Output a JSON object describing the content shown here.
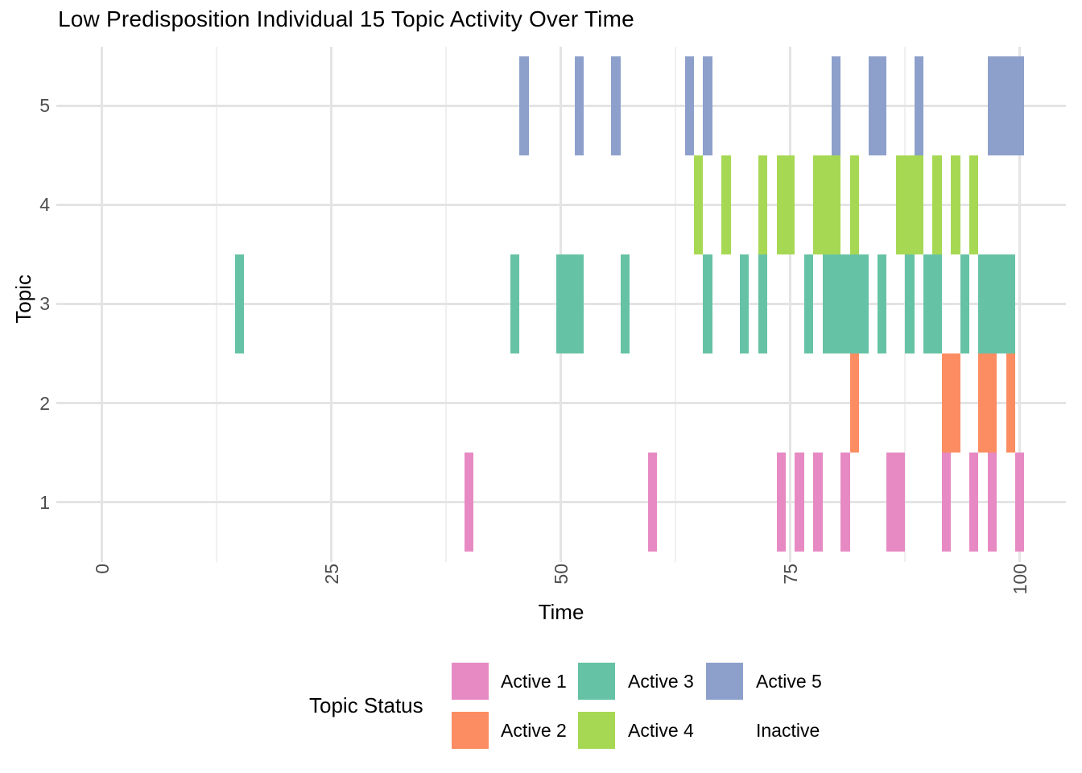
{
  "title": "Low Predisposition Individual 15 Topic Activity Over Time",
  "chart_data": {
    "type": "heatmap",
    "title": "Low Predisposition Individual 15 Topic Activity Over Time",
    "xlabel": "Time",
    "ylabel": "Topic",
    "x_ticks": [
      "0",
      "25",
      "50",
      "75",
      "100"
    ],
    "x_tick_values": [
      0,
      25,
      50,
      75,
      100
    ],
    "x_minor_tick_values": [
      12.5,
      37.5,
      62.5,
      87.5
    ],
    "x_range": [
      0,
      100
    ],
    "y_categories": [
      "1",
      "2",
      "3",
      "4",
      "5"
    ],
    "tile_width_time_units": 1,
    "grid": "on",
    "legend_position": "bottom",
    "series": [
      {
        "topic": 1,
        "status": "Active 1",
        "color": "#e78ac3",
        "active_runs": [
          [
            40,
            40
          ],
          [
            60,
            60
          ],
          [
            74,
            74
          ],
          [
            76,
            76
          ],
          [
            78,
            78
          ],
          [
            81,
            81
          ],
          [
            86,
            87
          ],
          [
            92,
            92
          ],
          [
            95,
            95
          ],
          [
            97,
            97
          ],
          [
            100,
            100
          ]
        ]
      },
      {
        "topic": 2,
        "status": "Active 2",
        "color": "#fc8d62",
        "active_runs": [
          [
            82,
            82
          ],
          [
            92,
            93
          ],
          [
            96,
            97
          ],
          [
            99,
            99
          ]
        ]
      },
      {
        "topic": 3,
        "status": "Active 3",
        "color": "#66c2a5",
        "active_runs": [
          [
            15,
            15
          ],
          [
            45,
            45
          ],
          [
            50,
            52
          ],
          [
            57,
            57
          ],
          [
            66,
            66
          ],
          [
            70,
            70
          ],
          [
            72,
            72
          ],
          [
            77,
            77
          ],
          [
            79,
            83
          ],
          [
            85,
            85
          ],
          [
            88,
            88
          ],
          [
            90,
            91
          ],
          [
            94,
            94
          ],
          [
            96,
            99
          ]
        ]
      },
      {
        "topic": 4,
        "status": "Active 4",
        "color": "#a6d854",
        "active_runs": [
          [
            65,
            65
          ],
          [
            68,
            68
          ],
          [
            72,
            72
          ],
          [
            74,
            75
          ],
          [
            78,
            80
          ],
          [
            82,
            82
          ],
          [
            87,
            89
          ],
          [
            91,
            91
          ],
          [
            93,
            93
          ],
          [
            95,
            95
          ]
        ]
      },
      {
        "topic": 5,
        "status": "Active 5",
        "color": "#8da0cb",
        "active_runs": [
          [
            46,
            46
          ],
          [
            52,
            52
          ],
          [
            56,
            56
          ],
          [
            64,
            64
          ],
          [
            66,
            66
          ],
          [
            80,
            80
          ],
          [
            84,
            85
          ],
          [
            89,
            89
          ],
          [
            97,
            100
          ]
        ]
      }
    ],
    "legend": {
      "title": "Topic Status",
      "entries": [
        {
          "label": "Active 1",
          "color": "#e78ac3"
        },
        {
          "label": "Active 2",
          "color": "#fc8d62"
        },
        {
          "label": "Active 3",
          "color": "#66c2a5"
        },
        {
          "label": "Active 4",
          "color": "#a6d854"
        },
        {
          "label": "Active 5",
          "color": "#8da0cb"
        },
        {
          "label": "Inactive",
          "color": "#ffffff"
        }
      ]
    }
  }
}
